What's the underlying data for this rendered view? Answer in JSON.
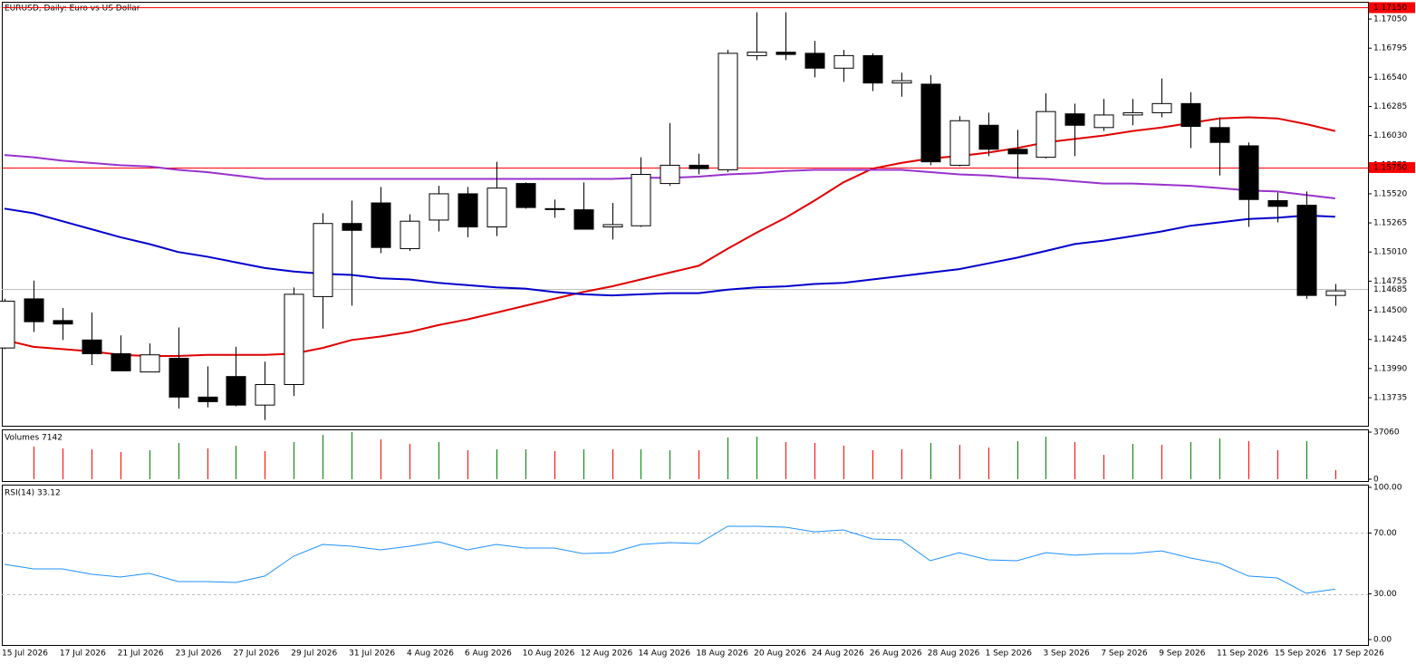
{
  "chart_data": [
    {
      "type": "candlestick",
      "title": "EURUSD, Daily: Euro vs US Dollar",
      "categories": [
        "15 Jul 2026",
        null,
        "17 Jul 2026",
        null,
        "21 Jul 2026",
        null,
        "23 Jul 2026",
        null,
        "27 Jul 2026",
        null,
        "29 Jul 2026",
        null,
        "31 Jul 2026",
        null,
        "4 Aug 2026",
        null,
        "6 Aug 2026",
        null,
        "10 Aug 2026",
        null,
        "12 Aug 2026",
        null,
        "14 Aug 2026",
        null,
        "18 Aug 2026",
        null,
        "20 Aug 2026",
        null,
        "24 Aug 2026",
        null,
        "26 Aug 2026",
        null,
        "28 Aug 2026",
        null,
        "1 Sep 2026",
        null,
        "3 Sep 2026",
        null,
        "7 Sep 2026",
        null,
        "9 Sep 2026",
        null,
        "11 Sep 2026",
        null,
        "15 Sep 2026",
        null,
        "17 Sep 2026"
      ],
      "open": [
        1.1417,
        1.146,
        1.1441,
        1.1424,
        1.1412,
        1.1396,
        1.1408,
        1.1374,
        1.1392,
        1.1367,
        1.1385,
        1.1462,
        1.1526,
        1.1544,
        1.1504,
        1.1529,
        1.1552,
        1.1523,
        1.1561,
        1.1539,
        1.1538,
        1.1523,
        1.1524,
        1.1561,
        1.1577,
        1.1573,
        1.1673,
        1.1676,
        1.1675,
        1.1662,
        1.1673,
        1.1649,
        1.1648,
        1.1577,
        1.1612,
        1.1591,
        1.1584,
        1.1622,
        1.161,
        1.1621,
        1.1623,
        1.1631,
        1.161,
        1.1594,
        1.1546,
        1.1542,
        1.1463
      ],
      "high": [
        1.146,
        1.1476,
        1.1452,
        1.1448,
        1.1428,
        1.1421,
        1.1435,
        1.1401,
        1.1418,
        1.1405,
        1.147,
        1.1535,
        1.1546,
        1.1558,
        1.1534,
        1.1559,
        1.1558,
        1.158,
        1.1562,
        1.1547,
        1.1562,
        1.1544,
        1.1584,
        1.1614,
        1.1587,
        1.1678,
        1.1711,
        1.1711,
        1.1686,
        1.1678,
        1.1675,
        1.1658,
        1.1656,
        1.162,
        1.1623,
        1.1608,
        1.164,
        1.1631,
        1.1635,
        1.1635,
        1.1653,
        1.1641,
        1.1619,
        1.1597,
        1.1553,
        1.1554,
        1.1473
      ],
      "low": [
        1.1416,
        1.1431,
        1.1424,
        1.1402,
        1.1397,
        1.1396,
        1.1364,
        1.1365,
        1.1366,
        1.1354,
        1.1375,
        1.1434,
        1.1454,
        1.15,
        1.1502,
        1.1519,
        1.1514,
        1.1515,
        1.1539,
        1.1531,
        1.1521,
        1.1512,
        1.1523,
        1.1559,
        1.1569,
        1.1571,
        1.1669,
        1.1669,
        1.1654,
        1.165,
        1.1642,
        1.1637,
        1.1577,
        1.1576,
        1.1585,
        1.1566,
        1.1583,
        1.1585,
        1.1607,
        1.1612,
        1.1619,
        1.1592,
        1.1568,
        1.1523,
        1.1527,
        1.146,
        1.1454
      ],
      "close": [
        1.1458,
        1.144,
        1.1438,
        1.1412,
        1.1397,
        1.1411,
        1.1374,
        1.137,
        1.1367,
        1.1385,
        1.1464,
        1.1526,
        1.152,
        1.1505,
        1.1528,
        1.1552,
        1.1523,
        1.1557,
        1.154,
        1.1539,
        1.1521,
        1.1525,
        1.1569,
        1.1577,
        1.1574,
        1.1675,
        1.1676,
        1.1674,
        1.1662,
        1.1673,
        1.1649,
        1.1651,
        1.158,
        1.1616,
        1.1591,
        1.1587,
        1.1624,
        1.1612,
        1.1621,
        1.1623,
        1.1631,
        1.1611,
        1.1597,
        1.1547,
        1.1541,
        1.1463,
        1.1467
      ],
      "up_color": "#ffffff",
      "down_color": "#000000",
      "series": [
        {
          "color": "#e00000",
          "values": [
            1.1424,
            1.1418,
            1.1416,
            1.1414,
            1.1411,
            1.141,
            1.141,
            1.1411,
            1.1411,
            1.1411,
            1.1412,
            1.1417,
            1.1424,
            1.1427,
            1.1431,
            1.1437,
            1.1442,
            1.1448,
            1.1454,
            1.146,
            1.1466,
            1.1471,
            1.1477,
            1.1483,
            1.1489,
            1.1504,
            1.1518,
            1.1531,
            1.1546,
            1.1562,
            1.1574,
            1.1579,
            1.1583,
            1.1585,
            1.1588,
            1.1592,
            1.1597,
            1.16,
            1.1603,
            1.1607,
            1.161,
            1.1614,
            1.1618,
            1.1619,
            1.1618,
            1.1613,
            1.1607
          ]
        },
        {
          "color": "#0000cc",
          "values": [
            1.1539,
            1.1535,
            1.1528,
            1.1521,
            1.1514,
            1.1508,
            1.1501,
            1.1497,
            1.1492,
            1.1487,
            1.1484,
            1.1482,
            1.1481,
            1.1478,
            1.1477,
            1.1474,
            1.1472,
            1.147,
            1.1469,
            1.1466,
            1.1464,
            1.1463,
            1.1464,
            1.1465,
            1.1465,
            1.1468,
            1.147,
            1.1471,
            1.1473,
            1.1474,
            1.1477,
            1.148,
            1.1483,
            1.1486,
            1.1491,
            1.1496,
            1.1502,
            1.1508,
            1.1511,
            1.1515,
            1.1519,
            1.1524,
            1.1527,
            1.153,
            1.1531,
            1.1533,
            1.1532
          ]
        },
        {
          "color": "#9932cc",
          "values": [
            1.1586,
            1.1584,
            1.1581,
            1.1579,
            1.1577,
            1.1576,
            1.1573,
            1.1571,
            1.1568,
            1.1565,
            1.1565,
            1.1565,
            1.1565,
            1.1565,
            1.1565,
            1.1565,
            1.1565,
            1.1565,
            1.1565,
            1.1565,
            1.1565,
            1.1565,
            1.1566,
            1.1566,
            1.1567,
            1.1569,
            1.157,
            1.1572,
            1.1573,
            1.1573,
            1.1573,
            1.1573,
            1.1571,
            1.1569,
            1.1568,
            1.1566,
            1.1565,
            1.1563,
            1.1561,
            1.1561,
            1.156,
            1.1559,
            1.1557,
            1.1555,
            1.1554,
            1.1551,
            1.1548
          ]
        }
      ],
      "ylim": [
        1.13489,
        1.17201
      ],
      "yticks": [
        {
          "value": 1.1705,
          "label": "1.17050"
        },
        {
          "value": 1.16795,
          "label": "1.16795"
        },
        {
          "value": 1.1654,
          "label": "1.16540"
        },
        {
          "value": 1.16285,
          "label": "1.16285"
        },
        {
          "value": 1.1603,
          "label": "1.16030"
        },
        {
          "value": 1.15775,
          "label": "1.15775"
        },
        {
          "value": 1.1552,
          "label": "1.15520"
        },
        {
          "value": 1.15265,
          "label": "1.15265"
        },
        {
          "value": 1.1501,
          "label": "1.15010"
        },
        {
          "value": 1.14755,
          "label": "1.14755"
        },
        {
          "value": 1.145,
          "label": "1.14500"
        },
        {
          "value": 1.14245,
          "label": "1.14245"
        },
        {
          "value": 1.1399,
          "label": "1.13990"
        },
        {
          "value": 1.13735,
          "label": "1.13735"
        }
      ],
      "hlines": [
        {
          "value": 1.1715,
          "label": "1.17150",
          "color": "#ff0000"
        },
        {
          "value": 1.1575,
          "label": "1.15750",
          "color": "#ff0000"
        }
      ],
      "bid_line": {
        "value": 1.14685,
        "label": "1.14685",
        "color": "#c0c0c0"
      }
    },
    {
      "type": "bar",
      "title": "Volumes 7142",
      "values": [
        null,
        25700,
        24200,
        23500,
        21400,
        22800,
        28500,
        24200,
        26400,
        22100,
        29200,
        34900,
        37060,
        31400,
        27800,
        29200,
        22800,
        23500,
        23500,
        22100,
        23500,
        23500,
        23500,
        22800,
        22800,
        32800,
        33500,
        29200,
        28500,
        26400,
        22800,
        23500,
        28500,
        27100,
        24900,
        29900,
        33500,
        29200,
        19200,
        27800,
        27100,
        29200,
        32100,
        29900,
        22800,
        29900,
        7142
      ],
      "colors": [
        null,
        "#ff0000",
        "#ff0000",
        "#ff0000",
        "#ff0000",
        "#008000",
        "#008000",
        "#ff0000",
        "#008000",
        "#ff0000",
        "#008000",
        "#008000",
        "#008000",
        "#ff0000",
        "#ff0000",
        "#008000",
        "#ff0000",
        "#008000",
        "#008000",
        "#ff0000",
        "#008000",
        "#ff0000",
        "#008000",
        "#008000",
        "#ff0000",
        "#008000",
        "#008000",
        "#ff0000",
        "#ff0000",
        "#ff0000",
        "#ff0000",
        "#ff0000",
        "#008000",
        "#ff0000",
        "#ff0000",
        "#008000",
        "#008000",
        "#ff0000",
        "#ff0000",
        "#008000",
        "#ff0000",
        "#008000",
        "#008000",
        "#ff0000",
        "#ff0000",
        "#008000",
        "#ff0000"
      ],
      "ylim": [
        0,
        37060
      ],
      "yticks": [
        37060,
        0
      ]
    },
    {
      "type": "line",
      "title": "RSI(14) 33.12",
      "color": "#1e90ff",
      "values": [
        49.4,
        46.4,
        46.4,
        42.9,
        41.1,
        43.5,
        38.1,
        38.1,
        37.5,
        41.7,
        54.8,
        62.5,
        61.3,
        58.9,
        61.3,
        64.3,
        58.9,
        62.5,
        60.1,
        60.1,
        56.5,
        57.1,
        62.5,
        63.7,
        63.1,
        74.4,
        74.4,
        73.8,
        70.8,
        72.0,
        66.1,
        65.5,
        51.8,
        57.1,
        52.4,
        51.8,
        57.1,
        55.4,
        56.5,
        56.5,
        58.3,
        53.6,
        50.0,
        41.7,
        40.5,
        30.4,
        33.12
      ],
      "ylim": [
        0,
        100
      ],
      "yticks": [
        {
          "value": 100,
          "label": "100.00"
        },
        {
          "value": 70,
          "label": "70.00"
        },
        {
          "value": 30,
          "label": "30.00"
        },
        {
          "value": 0,
          "label": "0.00"
        }
      ],
      "levels": [
        70,
        30
      ]
    }
  ]
}
